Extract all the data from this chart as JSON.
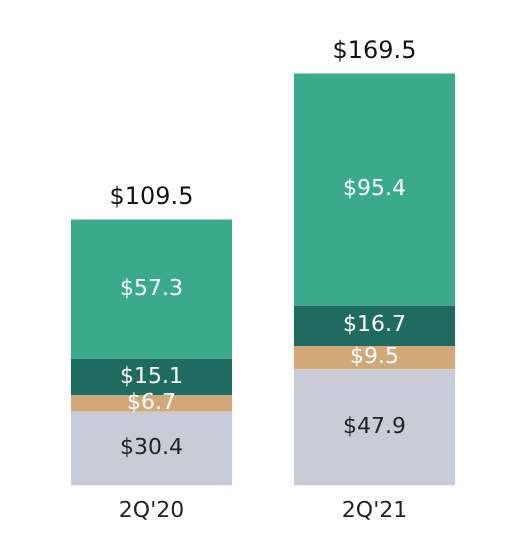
{
  "chart_data": {
    "type": "bar",
    "stacked": true,
    "categories": [
      "2Q'20",
      "2Q'21"
    ],
    "series": [
      {
        "color": "#c9cbd6",
        "values": [
          30.4,
          47.9
        ],
        "value_labels": [
          "$30.4",
          "$47.9"
        ]
      },
      {
        "color": "#d3a878",
        "values": [
          6.7,
          9.5
        ],
        "value_labels": [
          "$6.7",
          "$9.5"
        ]
      },
      {
        "color": "#1f6b5f",
        "values": [
          15.1,
          16.7
        ],
        "value_labels": [
          "$15.1",
          "$16.7"
        ]
      },
      {
        "color": "#3aa98c",
        "values": [
          57.3,
          95.4
        ],
        "value_labels": [
          "$57.3",
          "$95.4"
        ]
      }
    ],
    "totals": [
      "$109.5",
      "$169.5"
    ],
    "tick_labels": "x",
    "grid": false,
    "legend": false
  }
}
